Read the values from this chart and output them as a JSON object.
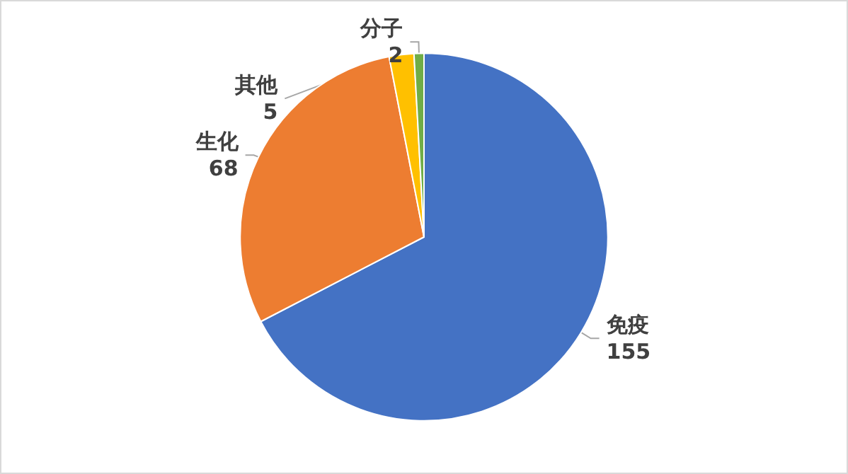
{
  "chart_data": {
    "type": "pie",
    "categories": [
      "免疫",
      "生化",
      "其他",
      "分子"
    ],
    "values": [
      155,
      68,
      5,
      2
    ],
    "colors": [
      "#4472c4",
      "#ed7d31",
      "#ffc000",
      "#70ad47"
    ],
    "data_labels": true,
    "legend": false
  }
}
